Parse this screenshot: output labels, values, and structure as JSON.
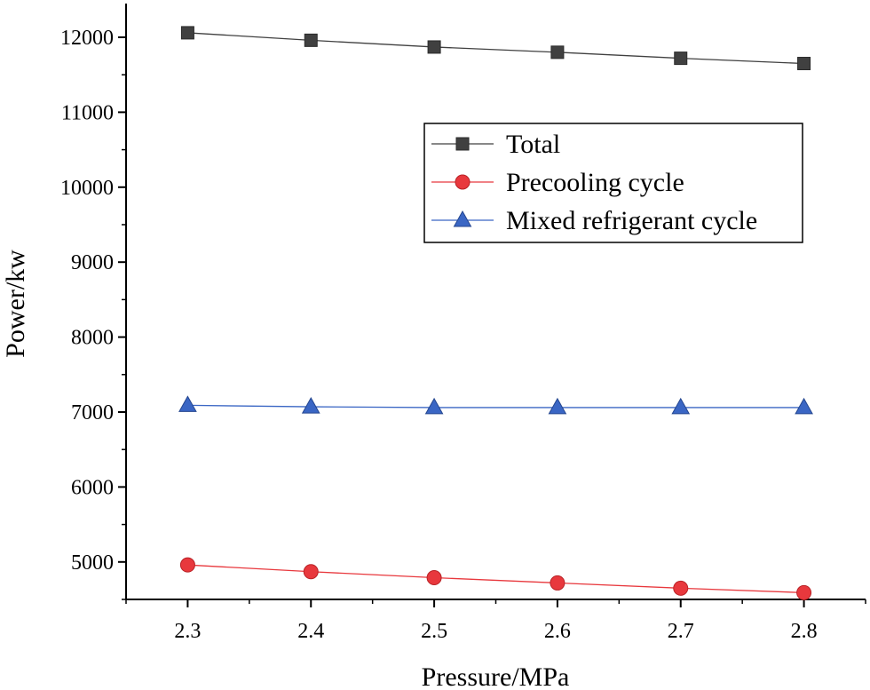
{
  "chart_data": {
    "type": "line",
    "title": "",
    "xlabel": "Pressure/MPa",
    "ylabel": "Power/kw",
    "x": [
      2.3,
      2.4,
      2.5,
      2.6,
      2.7,
      2.8
    ],
    "xlim": [
      2.25,
      2.85
    ],
    "ylim": [
      4500,
      12450
    ],
    "x_ticks": [
      "2.3",
      "2.4",
      "2.5",
      "2.6",
      "2.7",
      "2.8"
    ],
    "y_ticks": [
      "5000",
      "6000",
      "7000",
      "8000",
      "9000",
      "10000",
      "11000",
      "12000"
    ],
    "grid": false,
    "legend_position": "upper-right",
    "series": [
      {
        "name": "Total",
        "marker": "square",
        "color": "#404040",
        "line_color": "#404040",
        "values": [
          12060,
          11960,
          11870,
          11800,
          11720,
          11650
        ]
      },
      {
        "name": "Precooling cycle",
        "marker": "circle",
        "color": "#e8383d",
        "line_color": "#e8383d",
        "values": [
          4960,
          4870,
          4790,
          4720,
          4650,
          4590
        ]
      },
      {
        "name": "Mixed refrigerant cycle",
        "marker": "triangle",
        "color": "#3a66c4",
        "line_color": "#3a66c4",
        "values": [
          7090,
          7070,
          7060,
          7060,
          7060,
          7060
        ]
      }
    ]
  }
}
